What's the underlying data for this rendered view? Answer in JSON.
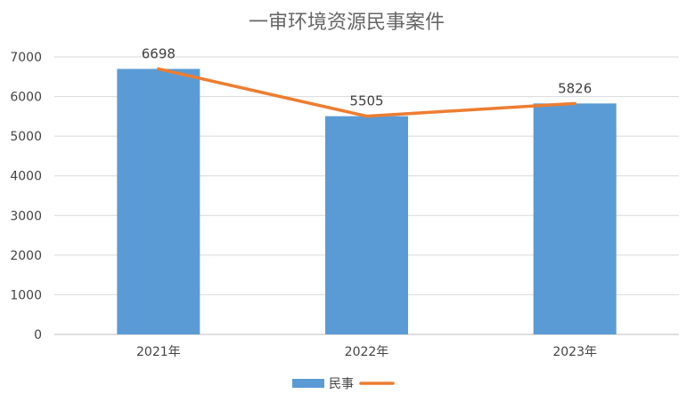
{
  "chart_data": {
    "type": "bar",
    "title": "一审环境资源民事案件",
    "categories": [
      "2021年",
      "2022年",
      "2023年"
    ],
    "series": [
      {
        "name": "民事",
        "type": "bar",
        "values": [
          6698,
          5505,
          5826
        ]
      },
      {
        "type": "line",
        "values": [
          6698,
          5505,
          5826
        ]
      }
    ],
    "data_labels": [
      "6698",
      "5505",
      "5826"
    ],
    "y_ticks": [
      "0",
      "1000",
      "2000",
      "3000",
      "4000",
      "5000",
      "6000",
      "7000"
    ],
    "ylim": [
      0,
      7000
    ],
    "grid": true,
    "legend": "bottom-center",
    "colors": {
      "bar": "#5b9bd5",
      "line": "#ed7d31",
      "grid": "#d9d9d9"
    }
  }
}
